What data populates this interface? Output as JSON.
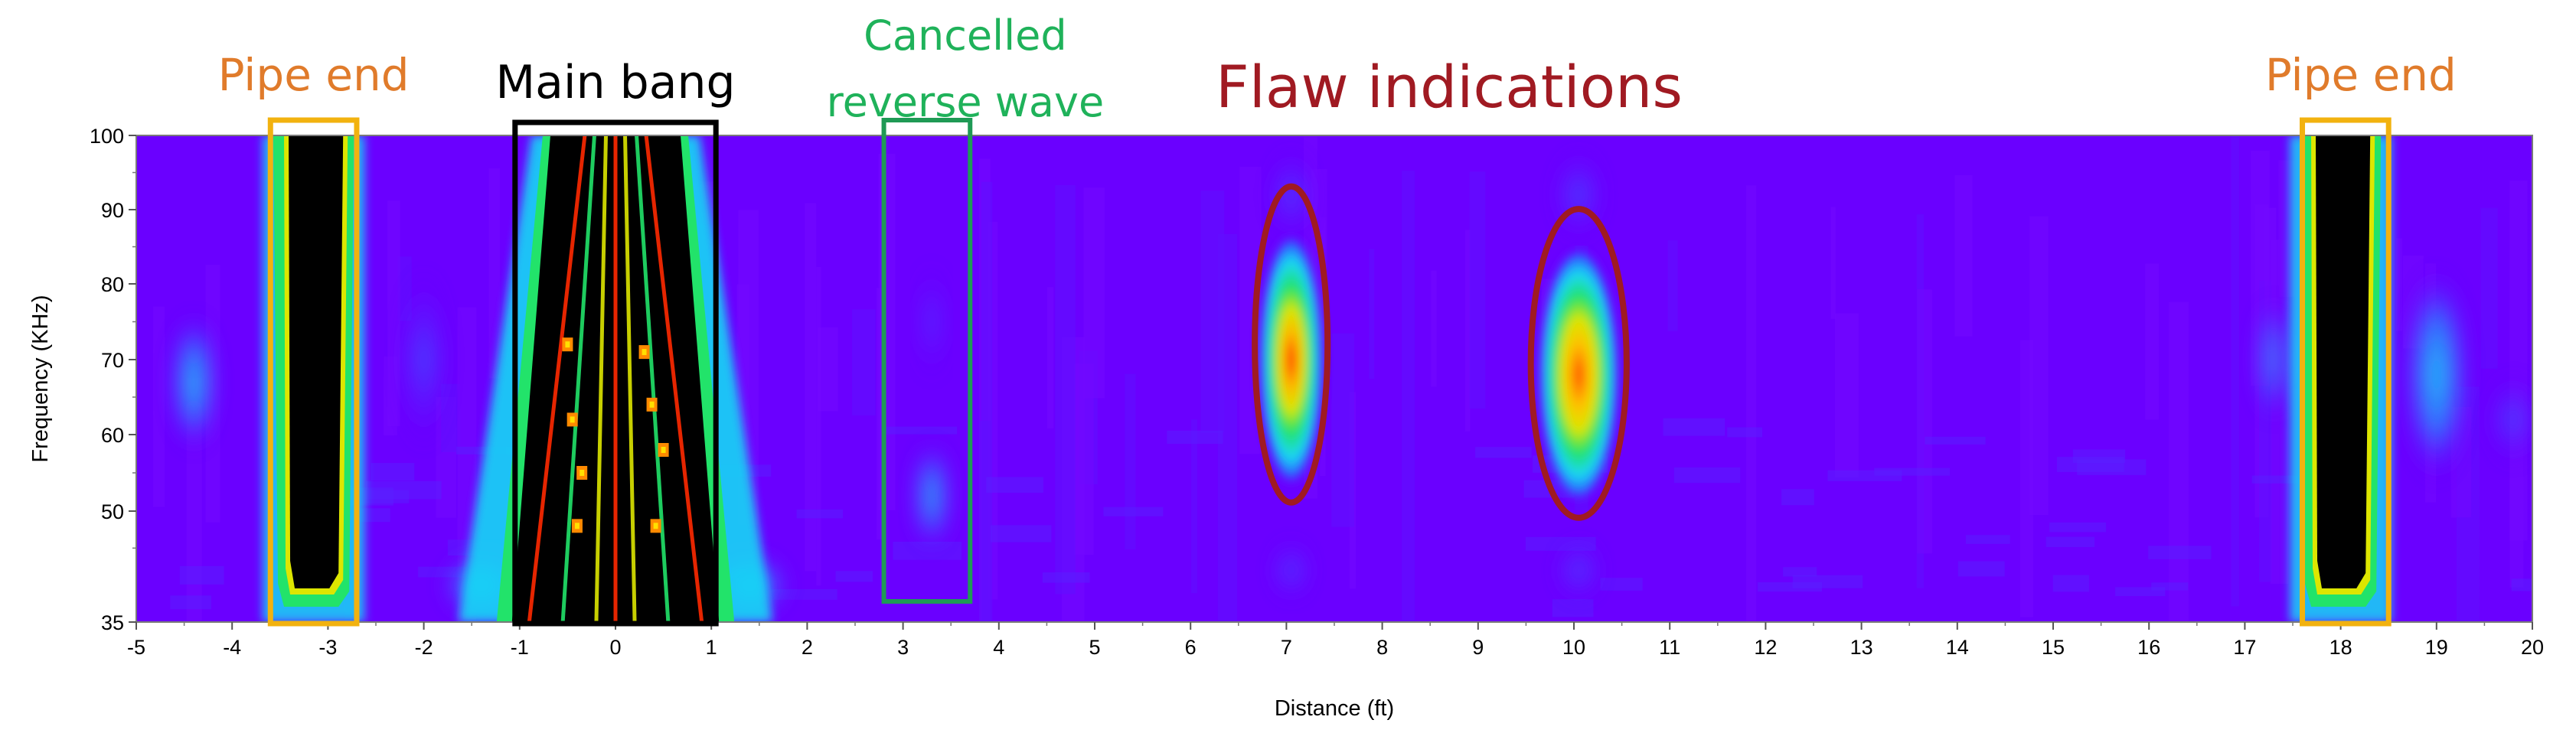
{
  "chart_data": {
    "type": "heatmap",
    "title": "",
    "xlabel": "Distance (ft)",
    "ylabel": "Frequency (KHz)",
    "xlim": [
      -5,
      20
    ],
    "ylim": [
      35,
      100
    ],
    "x_ticks": [
      "-5",
      "-4",
      "-3",
      "-2",
      "-1",
      "0",
      "1",
      "2",
      "3",
      "4",
      "5",
      "6",
      "7",
      "8",
      "9",
      "10",
      "11",
      "12",
      "13",
      "14",
      "15",
      "16",
      "17",
      "18",
      "19",
      "20"
    ],
    "y_ticks": [
      "35",
      "50",
      "60",
      "70",
      "80",
      "90",
      "100"
    ],
    "y_tick_values": [
      35,
      50,
      60,
      70,
      80,
      90,
      100
    ],
    "colormap": [
      "#6a00ff",
      "#2c5bff",
      "#19d7f5",
      "#22e36a",
      "#dde600",
      "#ff2a00",
      "#000000"
    ],
    "annotations": [
      {
        "id": "pipe-end-left",
        "text": "Pipe end",
        "color": "#e07b2b",
        "box_color": "#f2b20f",
        "x_range": [
          -3.6,
          -2.7
        ],
        "y_range": [
          35,
          100
        ],
        "shape": "rect"
      },
      {
        "id": "main-bang",
        "text": "Main bang",
        "color": "#000000",
        "box_color": "#000000",
        "x_range": [
          -1,
          1
        ],
        "y_range": [
          35,
          100
        ],
        "shape": "rect"
      },
      {
        "id": "cancelled-reverse-wave",
        "text_lines": [
          "Cancelled",
          "reverse wave"
        ],
        "color": "#1fb25a",
        "box_color": "#1f9a55",
        "x_range": [
          2.8,
          3.7
        ],
        "y_range": [
          38,
          100
        ],
        "shape": "rect"
      },
      {
        "id": "flaw-indications",
        "text": "Flaw indications",
        "color": "#a01a22",
        "box_color": "#a01a22",
        "shape": "ellipse",
        "ellipses": [
          {
            "cx": 7.05,
            "cy": 72,
            "rx": 0.38,
            "ry": 21
          },
          {
            "cx": 10.05,
            "cy": 69.5,
            "rx": 0.5,
            "ry": 20.5
          }
        ]
      },
      {
        "id": "pipe-end-right",
        "text": "Pipe end",
        "color": "#e07b2b",
        "box_color": "#f2b20f",
        "x_range": [
          17.6,
          18.5
        ],
        "y_range": [
          35,
          100
        ],
        "shape": "rect"
      }
    ],
    "features": [
      {
        "name": "pipe-end-left-echo",
        "x": -3.15,
        "width": 0.75,
        "y_range": [
          35,
          100
        ],
        "level": 1.0
      },
      {
        "name": "main-bang-echo",
        "x": 0,
        "width": 2.4,
        "y_range": [
          35,
          100
        ],
        "level": 1.0
      },
      {
        "name": "flaw-1",
        "x": 7.05,
        "y": 70,
        "sx": 0.18,
        "sy": 11,
        "level": 0.85
      },
      {
        "name": "flaw-2",
        "x": 10.05,
        "y": 68,
        "sx": 0.22,
        "sy": 12,
        "level": 0.78
      },
      {
        "name": "reverse-wave-residue",
        "x": 3.3,
        "y": 52,
        "sx": 0.12,
        "sy": 8,
        "level": 0.35
      },
      {
        "name": "pipe-end-right-echo",
        "x": 18.0,
        "width": 0.75,
        "y_range": [
          35,
          100
        ],
        "level": 1.0
      }
    ]
  }
}
